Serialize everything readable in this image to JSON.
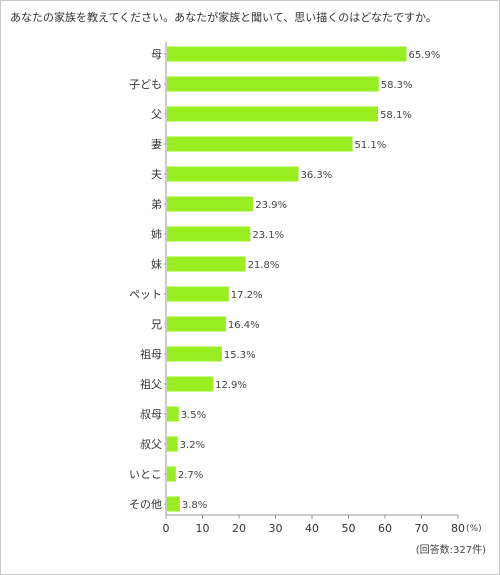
{
  "title": "あなたの家族を教えてください。あなたが家族と聞いて、思い描くのはどなたですか。",
  "note": "(回答数:327件)",
  "chart_data": {
    "type": "bar",
    "orientation": "horizontal",
    "title": "",
    "xlabel": "",
    "ylabel": "",
    "unit_label": "(%)",
    "xlim": [
      0,
      80
    ],
    "xticks": [
      0,
      10,
      20,
      30,
      40,
      50,
      60,
      70,
      80
    ],
    "categories": [
      "母",
      "子ども",
      "父",
      "妻",
      "夫",
      "弟",
      "姉",
      "妹",
      "ペット",
      "兄",
      "祖母",
      "祖父",
      "叔母",
      "叔父",
      "いとこ",
      "その他"
    ],
    "values": [
      65.9,
      58.3,
      58.1,
      51.1,
      36.3,
      23.9,
      23.1,
      21.8,
      17.2,
      16.4,
      15.3,
      12.9,
      3.5,
      3.2,
      2.7,
      3.8
    ],
    "value_labels": [
      "65.9%",
      "58.3%",
      "58.1%",
      "51.1%",
      "36.3%",
      "23.9%",
      "23.1%",
      "21.8%",
      "17.2%",
      "16.4%",
      "15.3%",
      "12.9%",
      "3.5%",
      "3.2%",
      "2.7%",
      "3.8%"
    ],
    "bar_color": "#99ee22",
    "grid": false
  }
}
